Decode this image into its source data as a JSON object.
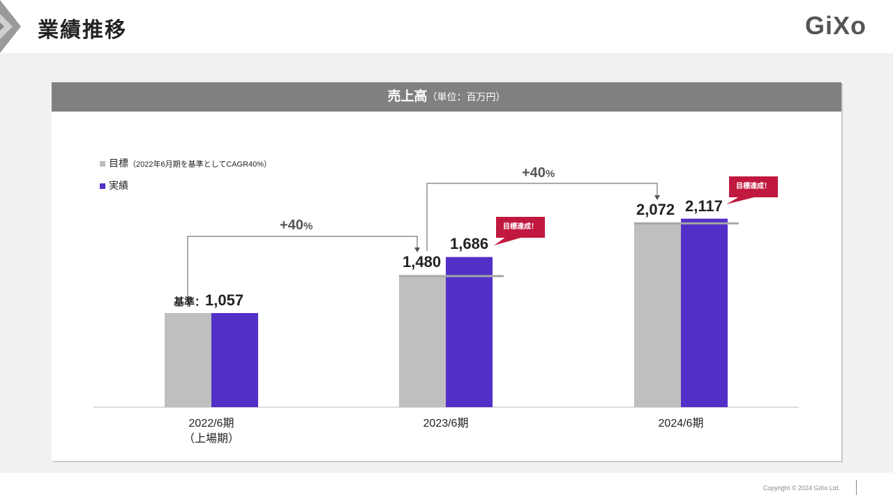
{
  "header": {
    "title": "業績推移",
    "logo": "GiXo"
  },
  "card": {
    "title": "売上高",
    "unit": "（単位：百万円）"
  },
  "footer": {
    "copyright": "Copyright © 2024 GiXo Ltd."
  },
  "colors": {
    "target": "#bfbfbf",
    "actual": "#5230c8",
    "badge": "#c0183e",
    "header": "#808080"
  },
  "chart_data": {
    "type": "bar",
    "title": "売上高（単位：百万円）",
    "categories": [
      "2022/6期",
      "2023/6期",
      "2024/6期"
    ],
    "category_sub": [
      "（上場期）",
      "",
      ""
    ],
    "series": [
      {
        "name": "目標",
        "note": "（2022年6月期を基準としてCAGR40%）",
        "values": [
          1057,
          1480,
          2072
        ]
      },
      {
        "name": "実績",
        "values": [
          1057,
          1686,
          2117
        ]
      }
    ],
    "labels": {
      "base_prefix": "基準：",
      "base_value": "1,057",
      "t2": "1,480",
      "a2": "1,686",
      "t3": "2,072",
      "a3": "2,117"
    },
    "annotations": {
      "growth1": "+40",
      "growth2": "+40",
      "pct": "%",
      "badge": "目標達成！"
    },
    "ylim": [
      0,
      2300
    ]
  }
}
